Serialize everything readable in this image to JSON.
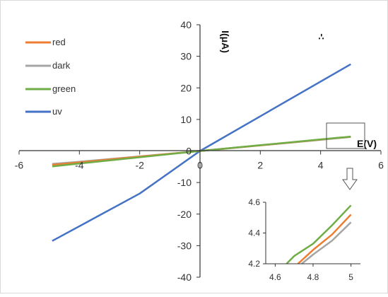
{
  "chart_data": [
    {
      "type": "line",
      "title": "",
      "xlabel": "E(V)",
      "ylabel": "I(μA)",
      "corner_mark": "-:",
      "xlim": [
        -6,
        6
      ],
      "ylim": [
        -40,
        40
      ],
      "x_ticks": [
        "-6",
        "-4",
        "-2",
        "0",
        "2",
        "4",
        "6"
      ],
      "y_ticks": [
        "40",
        "30",
        "20",
        "10",
        "0",
        "-10",
        "-20",
        "-30",
        "-40"
      ],
      "legend_position": "top-left",
      "grid": false,
      "series": [
        {
          "name": "red",
          "color": "#ed7d31",
          "points": [
            [
              -4.9,
              -4.4
            ],
            [
              -4,
              -3.6
            ],
            [
              -2,
              -1.8
            ],
            [
              0,
              0
            ],
            [
              1,
              0.9
            ],
            [
              2,
              1.8
            ],
            [
              3,
              2.7
            ],
            [
              4,
              3.6
            ],
            [
              4.6,
              4.2
            ],
            [
              4.8,
              4.32
            ],
            [
              5,
              4.52
            ]
          ]
        },
        {
          "name": "dark",
          "color": "#a5a5a5",
          "points": [
            [
              -4.9,
              -4.1
            ],
            [
              -4,
              -3.4
            ],
            [
              -2,
              -1.7
            ],
            [
              0,
              0
            ],
            [
              1,
              0.88
            ],
            [
              2,
              1.76
            ],
            [
              3,
              2.64
            ],
            [
              4,
              3.52
            ],
            [
              4.6,
              4.1
            ],
            [
              4.8,
              4.26
            ],
            [
              5,
              4.46
            ]
          ]
        },
        {
          "name": "green",
          "color": "#70ad47",
          "points": [
            [
              -4.9,
              -4.9
            ],
            [
              -4,
              -4.0
            ],
            [
              -2,
              -2.0
            ],
            [
              0,
              0
            ],
            [
              1,
              0.92
            ],
            [
              2,
              1.84
            ],
            [
              3,
              2.76
            ],
            [
              4,
              3.68
            ],
            [
              4.6,
              4.22
            ],
            [
              4.8,
              4.38
            ],
            [
              5,
              4.58
            ]
          ]
        },
        {
          "name": "uv",
          "color": "#4472c4",
          "points": [
            [
              -4.9,
              -28.5
            ],
            [
              -2,
              -13.5
            ],
            [
              0,
              0
            ],
            [
              2,
              11
            ],
            [
              5,
              27.5
            ]
          ]
        }
      ]
    },
    {
      "type": "line",
      "title": "",
      "xlim": [
        4.55,
        5.05
      ],
      "ylim": [
        4.2,
        4.6
      ],
      "x_ticks": [
        "4.6",
        "4.8",
        "5"
      ],
      "y_ticks": [
        "4.6",
        "4.4",
        "4.2"
      ],
      "series": [
        {
          "name": "green",
          "color": "#70ad47",
          "points": [
            [
              4.66,
              4.2
            ],
            [
              4.7,
              4.25
            ],
            [
              4.8,
              4.33
            ],
            [
              4.9,
              4.45
            ],
            [
              5,
              4.58
            ]
          ]
        },
        {
          "name": "red",
          "color": "#ed7d31",
          "points": [
            [
              4.72,
              4.2
            ],
            [
              4.8,
              4.29
            ],
            [
              4.9,
              4.39
            ],
            [
              5,
              4.52
            ]
          ]
        },
        {
          "name": "dark",
          "color": "#a5a5a5",
          "points": [
            [
              4.74,
              4.2
            ],
            [
              4.8,
              4.26
            ],
            [
              4.9,
              4.35
            ],
            [
              5,
              4.47
            ]
          ]
        }
      ]
    }
  ]
}
